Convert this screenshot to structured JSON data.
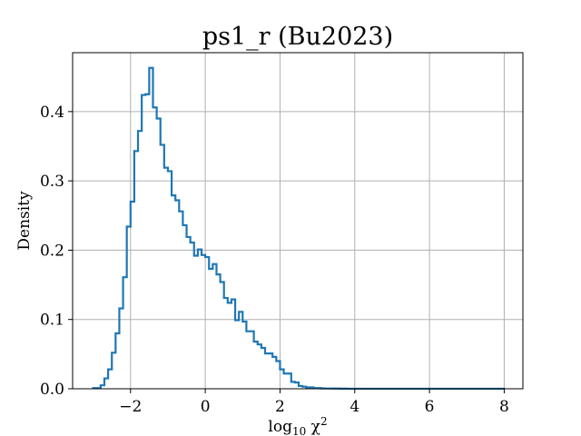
{
  "chart_data": {
    "type": "histogram-step",
    "title": "ps1_r (Bu2023)",
    "xlabel": "log10 χ²",
    "ylabel": "Density",
    "xlim": [
      -3.55,
      8.5
    ],
    "ylim": [
      0.0,
      0.485
    ],
    "grid": true,
    "x_ticks": [
      -2,
      0,
      2,
      4,
      6,
      8
    ],
    "x_tick_labels": [
      "−2",
      "0",
      "2",
      "4",
      "6",
      "8"
    ],
    "y_ticks": [
      0.0,
      0.1,
      0.2,
      0.3,
      0.4
    ],
    "y_tick_labels": [
      "0.0",
      "0.1",
      "0.2",
      "0.3",
      "0.4"
    ],
    "colors": {
      "line": "#1f77b4",
      "grid": "#b0b0b0",
      "axes": "#000000"
    },
    "series": [
      {
        "x": [
          -3.0,
          -2.8,
          -2.7,
          -2.6,
          -2.5,
          -2.4,
          -2.3,
          -2.2,
          -2.1,
          -2.0,
          -1.9,
          -1.8,
          -1.7,
          -1.6,
          -1.5,
          -1.4,
          -1.3,
          -1.2,
          -1.1,
          -1.0,
          -0.9,
          -0.8,
          -0.7,
          -0.6,
          -0.5,
          -0.4,
          -0.3,
          -0.2,
          -0.1,
          0.0,
          0.1,
          0.2,
          0.3,
          0.4,
          0.5,
          0.6,
          0.7,
          0.8,
          0.9,
          1.0,
          1.1,
          1.2,
          1.3,
          1.4,
          1.5,
          1.6,
          1.7,
          1.8,
          1.9,
          2.0,
          2.1,
          2.2,
          2.3,
          2.4,
          2.5,
          2.6,
          2.7,
          2.8,
          2.9,
          3.0,
          3.1,
          3.2,
          3.4,
          3.6,
          3.8,
          4.0,
          5.0,
          6.0,
          7.0,
          8.0
        ],
        "values": [
          0.001,
          0.005,
          0.015,
          0.028,
          0.052,
          0.08,
          0.116,
          0.161,
          0.234,
          0.27,
          0.343,
          0.372,
          0.424,
          0.425,
          0.463,
          0.406,
          0.39,
          0.352,
          0.319,
          0.314,
          0.279,
          0.272,
          0.256,
          0.236,
          0.219,
          0.211,
          0.192,
          0.201,
          0.193,
          0.19,
          0.173,
          0.18,
          0.165,
          0.154,
          0.131,
          0.124,
          0.129,
          0.099,
          0.111,
          0.097,
          0.083,
          0.083,
          0.068,
          0.064,
          0.059,
          0.051,
          0.051,
          0.046,
          0.04,
          0.028,
          0.022,
          0.022,
          0.01,
          0.009,
          0.004,
          0.003,
          0.002,
          0.002,
          0.001,
          0.001,
          0.0005,
          0.0004,
          0.0003,
          0.0002,
          0.0001,
          0.0001,
          0.0001,
          0.0001,
          0.0001
        ]
      }
    ]
  }
}
